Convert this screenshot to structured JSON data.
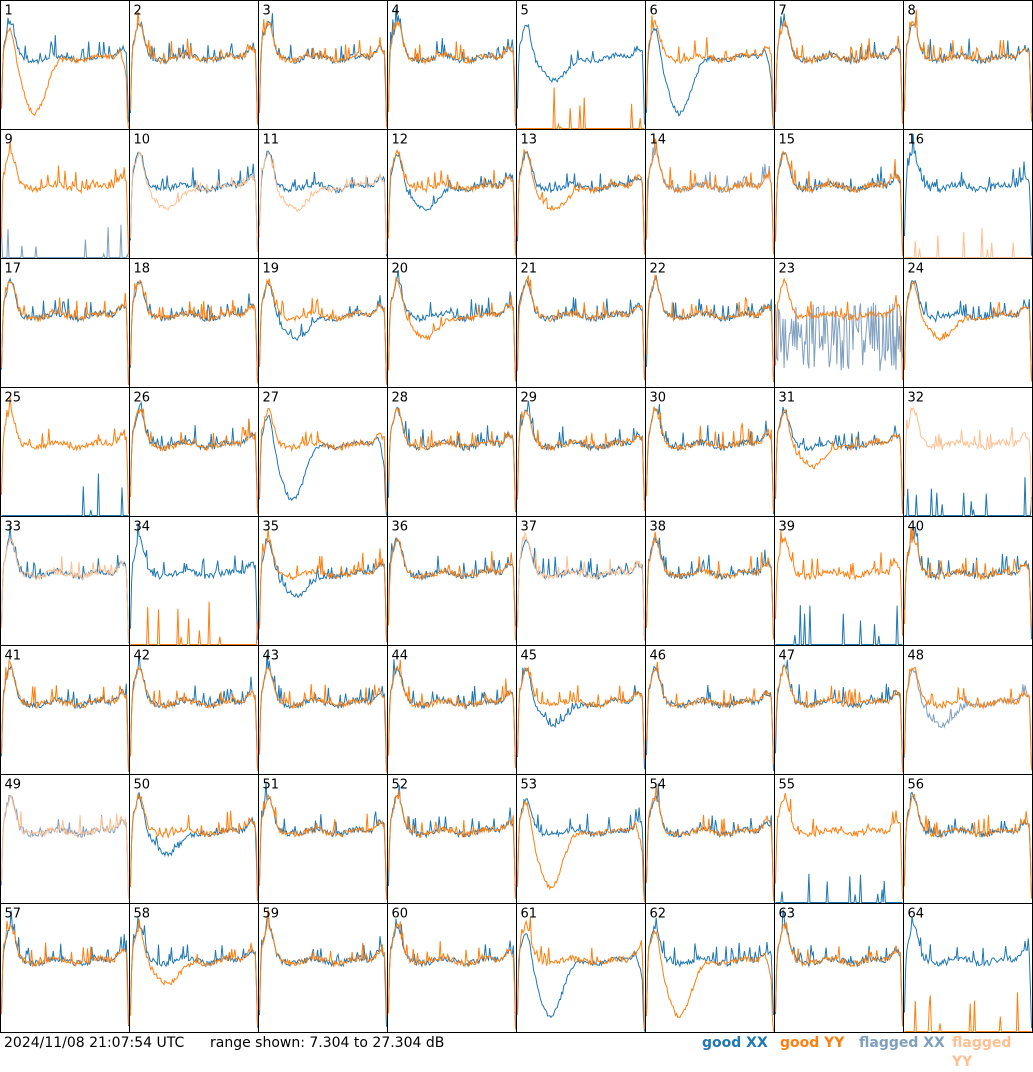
{
  "footer": {
    "timestamp": "2024/11/08 21:07:54 UTC",
    "range_text": "range shown: 7.304 to 27.304 dB"
  },
  "legend": [
    {
      "label": "good XX",
      "color": "#1f77b4"
    },
    {
      "label": "good YY",
      "color": "#ff7f0e"
    },
    {
      "label": "flagged XX",
      "color": "#7f9fbf"
    },
    {
      "label": "flagged YY",
      "color": "#ffbf8f"
    }
  ],
  "chart_data": {
    "type": "line",
    "grid": {
      "rows": 8,
      "cols": 8
    },
    "ylim": [
      7.304,
      27.304
    ],
    "yunit": "dB",
    "series_names": [
      "good XX",
      "good YY",
      "flagged XX",
      "flagged YY"
    ],
    "panels": [
      {
        "id": 1,
        "xx": "good",
        "yy": "good",
        "xx_shape": "flat",
        "yy_shape": "dip_deep"
      },
      {
        "id": 2,
        "xx": "good",
        "yy": "good",
        "xx_shape": "flat",
        "yy_shape": "flat"
      },
      {
        "id": 3,
        "xx": "good",
        "yy": "good",
        "xx_shape": "flat",
        "yy_shape": "flat"
      },
      {
        "id": 4,
        "xx": "good",
        "yy": "good",
        "xx_shape": "flat",
        "yy_shape": "flat"
      },
      {
        "id": 5,
        "xx": "good",
        "yy": "good",
        "xx_shape": "dip",
        "yy_shape": "spiky_low"
      },
      {
        "id": 6,
        "xx": "good",
        "yy": "good",
        "xx_shape": "dip_deep",
        "yy_shape": "flat"
      },
      {
        "id": 7,
        "xx": "good",
        "yy": "good",
        "xx_shape": "flat",
        "yy_shape": "flat"
      },
      {
        "id": 8,
        "xx": "good",
        "yy": "good",
        "xx_shape": "flat",
        "yy_shape": "flat"
      },
      {
        "id": 9,
        "xx": "flagged",
        "yy": "good",
        "xx_shape": "spiky_low",
        "yy_shape": "flat"
      },
      {
        "id": 10,
        "xx": "good",
        "yy": "flagged",
        "xx_shape": "flat",
        "yy_shape": "dip"
      },
      {
        "id": 11,
        "xx": "good",
        "yy": "flagged",
        "xx_shape": "flat",
        "yy_shape": "dip"
      },
      {
        "id": 12,
        "xx": "good",
        "yy": "good",
        "xx_shape": "dip",
        "yy_shape": "flat"
      },
      {
        "id": 13,
        "xx": "good",
        "yy": "good",
        "xx_shape": "flat",
        "yy_shape": "dip"
      },
      {
        "id": 14,
        "xx": "flagged",
        "yy": "good",
        "xx_shape": "flat",
        "yy_shape": "flat"
      },
      {
        "id": 15,
        "xx": "good",
        "yy": "good",
        "xx_shape": "flat",
        "yy_shape": "flat"
      },
      {
        "id": 16,
        "xx": "good",
        "yy": "flagged",
        "xx_shape": "flat",
        "yy_shape": "spiky_low"
      },
      {
        "id": 17,
        "xx": "good",
        "yy": "good",
        "xx_shape": "flat",
        "yy_shape": "flat"
      },
      {
        "id": 18,
        "xx": "good",
        "yy": "good",
        "xx_shape": "flat",
        "yy_shape": "flat"
      },
      {
        "id": 19,
        "xx": "good",
        "yy": "good",
        "xx_shape": "dip",
        "yy_shape": "flat"
      },
      {
        "id": 20,
        "xx": "good",
        "yy": "good",
        "xx_shape": "flat",
        "yy_shape": "dip"
      },
      {
        "id": 21,
        "xx": "good",
        "yy": "good",
        "xx_shape": "flat",
        "yy_shape": "flat"
      },
      {
        "id": 22,
        "xx": "good",
        "yy": "good",
        "xx_shape": "flat",
        "yy_shape": "flat"
      },
      {
        "id": 23,
        "xx": "flagged",
        "yy": "good",
        "xx_shape": "noisy",
        "yy_shape": "flat"
      },
      {
        "id": 24,
        "xx": "good",
        "yy": "good",
        "xx_shape": "flat",
        "yy_shape": "dip"
      },
      {
        "id": 25,
        "xx": "good",
        "yy": "good",
        "xx_shape": "spiky_low",
        "yy_shape": "flat"
      },
      {
        "id": 26,
        "xx": "good",
        "yy": "good",
        "xx_shape": "flat",
        "yy_shape": "flat"
      },
      {
        "id": 27,
        "xx": "good",
        "yy": "good",
        "xx_shape": "dip_deep",
        "yy_shape": "flat"
      },
      {
        "id": 28,
        "xx": "good",
        "yy": "good",
        "xx_shape": "flat",
        "yy_shape": "flat"
      },
      {
        "id": 29,
        "xx": "good",
        "yy": "good",
        "xx_shape": "flat",
        "yy_shape": "flat"
      },
      {
        "id": 30,
        "xx": "good",
        "yy": "good",
        "xx_shape": "flat",
        "yy_shape": "flat"
      },
      {
        "id": 31,
        "xx": "good",
        "yy": "good",
        "xx_shape": "flat",
        "yy_shape": "dip"
      },
      {
        "id": 32,
        "xx": "good",
        "yy": "flagged",
        "xx_shape": "spiky_low",
        "yy_shape": "flat"
      },
      {
        "id": 33,
        "xx": "good",
        "yy": "flagged",
        "xx_shape": "flat",
        "yy_shape": "flat"
      },
      {
        "id": 34,
        "xx": "good",
        "yy": "good",
        "xx_shape": "flat",
        "yy_shape": "spiky_low"
      },
      {
        "id": 35,
        "xx": "good",
        "yy": "good",
        "xx_shape": "dip",
        "yy_shape": "flat"
      },
      {
        "id": 36,
        "xx": "good",
        "yy": "good",
        "xx_shape": "flat",
        "yy_shape": "flat"
      },
      {
        "id": 37,
        "xx": "good",
        "yy": "flagged",
        "xx_shape": "flat",
        "yy_shape": "flat"
      },
      {
        "id": 38,
        "xx": "good",
        "yy": "good",
        "xx_shape": "flat",
        "yy_shape": "flat"
      },
      {
        "id": 39,
        "xx": "good",
        "yy": "good",
        "xx_shape": "spiky_low",
        "yy_shape": "flat"
      },
      {
        "id": 40,
        "xx": "good",
        "yy": "good",
        "xx_shape": "flat",
        "yy_shape": "flat"
      },
      {
        "id": 41,
        "xx": "good",
        "yy": "good",
        "xx_shape": "flat",
        "yy_shape": "flat"
      },
      {
        "id": 42,
        "xx": "good",
        "yy": "good",
        "xx_shape": "flat",
        "yy_shape": "flat"
      },
      {
        "id": 43,
        "xx": "good",
        "yy": "good",
        "xx_shape": "flat",
        "yy_shape": "flat"
      },
      {
        "id": 44,
        "xx": "good",
        "yy": "good",
        "xx_shape": "flat",
        "yy_shape": "flat"
      },
      {
        "id": 45,
        "xx": "good",
        "yy": "good",
        "xx_shape": "dip",
        "yy_shape": "flat"
      },
      {
        "id": 46,
        "xx": "good",
        "yy": "good",
        "xx_shape": "flat",
        "yy_shape": "flat"
      },
      {
        "id": 47,
        "xx": "good",
        "yy": "good",
        "xx_shape": "flat",
        "yy_shape": "flat"
      },
      {
        "id": 48,
        "xx": "flagged",
        "yy": "good",
        "xx_shape": "dip",
        "yy_shape": "flat"
      },
      {
        "id": 49,
        "xx": "flagged",
        "yy": "flagged",
        "xx_shape": "flat",
        "yy_shape": "flat"
      },
      {
        "id": 50,
        "xx": "good",
        "yy": "good",
        "xx_shape": "dip",
        "yy_shape": "flat"
      },
      {
        "id": 51,
        "xx": "good",
        "yy": "good",
        "xx_shape": "flat",
        "yy_shape": "flat"
      },
      {
        "id": 52,
        "xx": "good",
        "yy": "good",
        "xx_shape": "flat",
        "yy_shape": "flat"
      },
      {
        "id": 53,
        "xx": "good",
        "yy": "good",
        "xx_shape": "flat",
        "yy_shape": "dip_deep"
      },
      {
        "id": 54,
        "xx": "good",
        "yy": "good",
        "xx_shape": "flat",
        "yy_shape": "flat"
      },
      {
        "id": 55,
        "xx": "good",
        "yy": "good",
        "xx_shape": "spiky_low",
        "yy_shape": "flat"
      },
      {
        "id": 56,
        "xx": "good",
        "yy": "good",
        "xx_shape": "flat",
        "yy_shape": "flat"
      },
      {
        "id": 57,
        "xx": "good",
        "yy": "good",
        "xx_shape": "flat",
        "yy_shape": "flat"
      },
      {
        "id": 58,
        "xx": "good",
        "yy": "good",
        "xx_shape": "flat",
        "yy_shape": "dip"
      },
      {
        "id": 59,
        "xx": "good",
        "yy": "good",
        "xx_shape": "flat",
        "yy_shape": "flat"
      },
      {
        "id": 60,
        "xx": "good",
        "yy": "good",
        "xx_shape": "flat",
        "yy_shape": "flat"
      },
      {
        "id": 61,
        "xx": "good",
        "yy": "good",
        "xx_shape": "dip_deep",
        "yy_shape": "flat"
      },
      {
        "id": 62,
        "xx": "good",
        "yy": "good",
        "xx_shape": "flat",
        "yy_shape": "dip_deep"
      },
      {
        "id": 63,
        "xx": "good",
        "yy": "good",
        "xx_shape": "flat",
        "yy_shape": "flat"
      },
      {
        "id": 64,
        "xx": "good",
        "yy": "good",
        "xx_shape": "flat",
        "yy_shape": "spiky_low"
      }
    ]
  }
}
